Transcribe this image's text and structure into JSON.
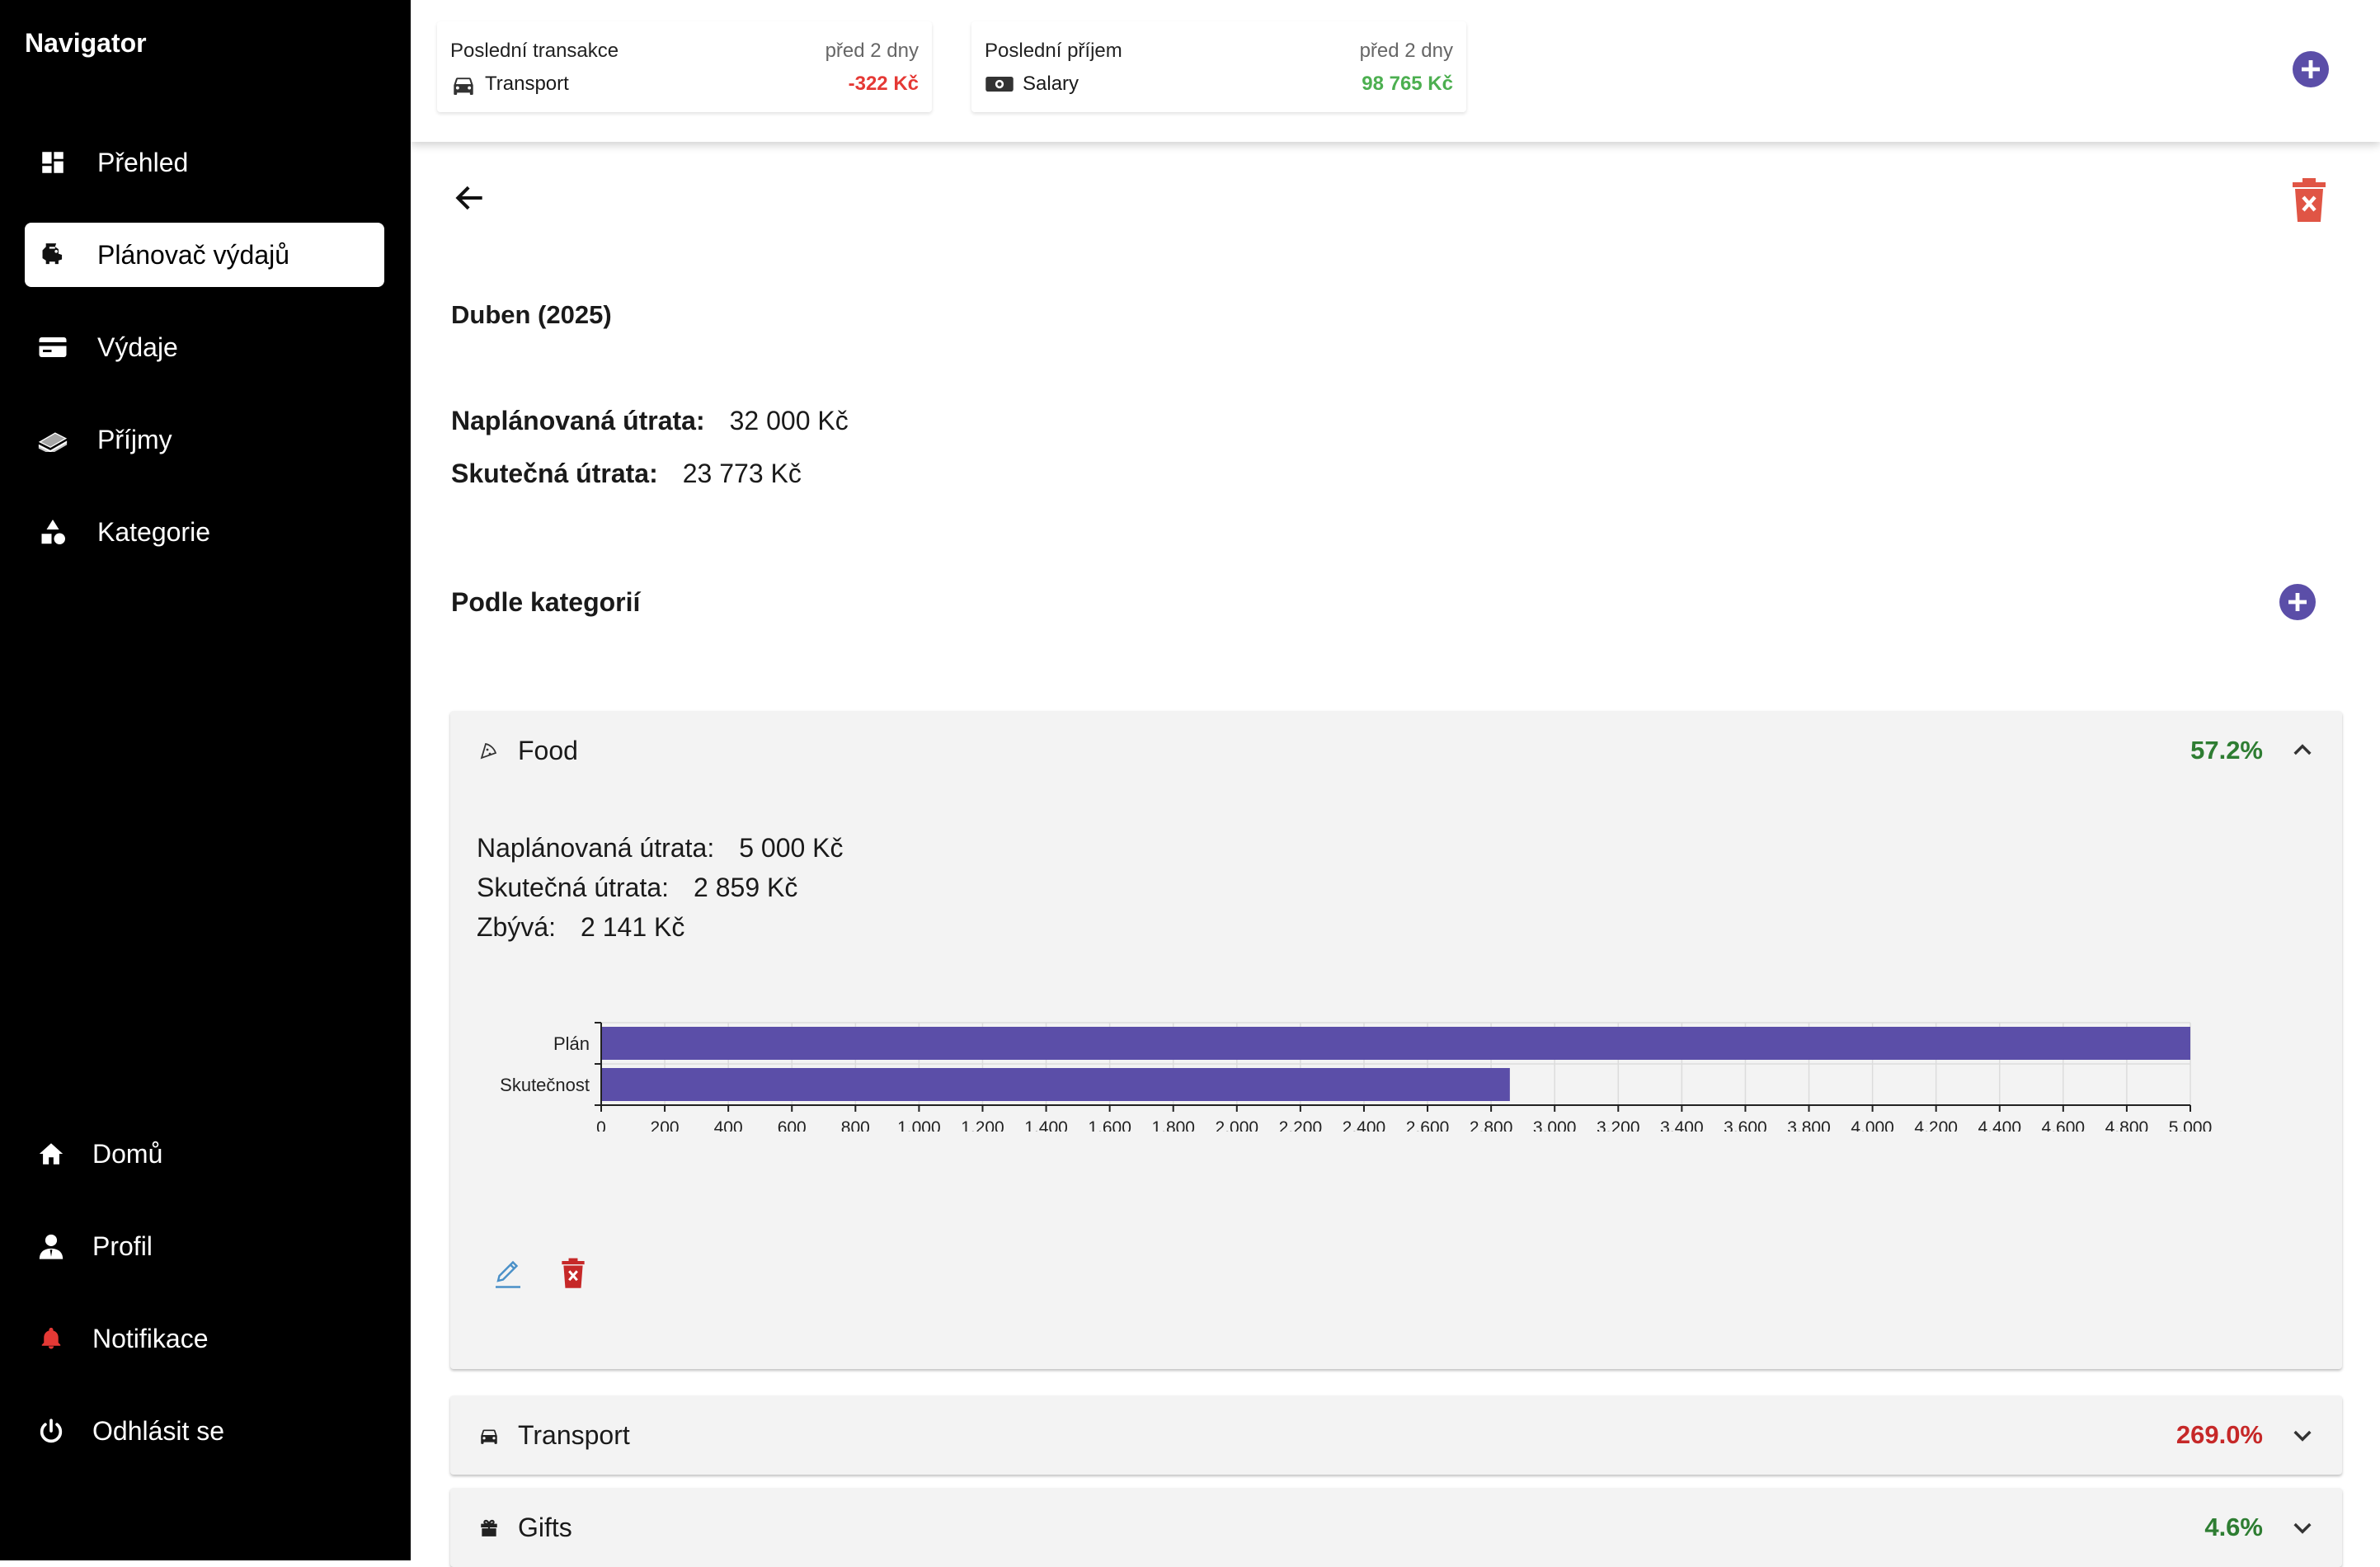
{
  "sidebar": {
    "brand": "Navigator",
    "items": [
      {
        "label": "Přehled",
        "icon": "dashboard-icon"
      },
      {
        "label": "Plánovač výdajů",
        "icon": "piggy-bank-icon"
      },
      {
        "label": "Výdaje",
        "icon": "credit-card-icon"
      },
      {
        "label": "Příjmy",
        "icon": "money-stack-icon"
      },
      {
        "label": "Kategorie",
        "icon": "category-shapes-icon"
      }
    ],
    "bottom": [
      {
        "label": "Domů",
        "icon": "home-icon"
      },
      {
        "label": "Profil",
        "icon": "profile-icon"
      },
      {
        "label": "Notifikace",
        "icon": "bell-icon"
      },
      {
        "label": "Odhlásit se",
        "icon": "power-icon"
      }
    ]
  },
  "topbar": {
    "last_transaction": {
      "title": "Poslední transakce",
      "time": "před 2 dny",
      "category": "Transport",
      "amount": "-322 Kč",
      "amount_color": "#e53935"
    },
    "last_income": {
      "title": "Poslední příjem",
      "time": "před 2 dny",
      "category": "Salary",
      "amount": "98 765 Kč",
      "amount_color": "#4caf50"
    }
  },
  "plan": {
    "title": "Duben (2025)",
    "planned_label": "Naplánovaná útrata:",
    "planned_value": "32 000 Kč",
    "actual_label": "Skutečná útrata:",
    "actual_value": "23 773 Kč",
    "section_title": "Podle kategorií"
  },
  "categories": [
    {
      "name": "Food",
      "icon": "pizza-icon",
      "percent": "57.2%",
      "percent_color": "#2e7d32",
      "expanded": true,
      "planned_label": "Naplánovaná útrata:",
      "planned_value": "5 000 Kč",
      "actual_label": "Skutečná útrata:",
      "actual_value": "2 859 Kč",
      "remaining_label": "Zbývá:",
      "remaining_value": "2 141 Kč"
    },
    {
      "name": "Transport",
      "icon": "car-icon",
      "percent": "269.0%",
      "percent_color": "#c62828",
      "expanded": false
    },
    {
      "name": "Gifts",
      "icon": "gift-icon",
      "percent": "4.6%",
      "percent_color": "#2e7d32",
      "expanded": false
    }
  ],
  "colors": {
    "accent": "#5b4ea8",
    "danger": "#e53935",
    "edit": "#4a90c8"
  },
  "chart_data": {
    "type": "bar",
    "orientation": "horizontal",
    "categories": [
      "Plán",
      "Skutečnost"
    ],
    "values": [
      5000,
      2859
    ],
    "xlim": [
      0,
      5000
    ],
    "xticks": [
      0,
      200,
      400,
      600,
      800,
      1000,
      1200,
      1400,
      1600,
      1800,
      2000,
      2200,
      2400,
      2600,
      2800,
      3000,
      3200,
      3400,
      3600,
      3800,
      4000,
      4200,
      4400,
      4600,
      4800,
      5000
    ],
    "xtick_labels": [
      "0",
      "200",
      "400",
      "600",
      "800",
      "1,000",
      "1,200",
      "1,400",
      "1,600",
      "1,800",
      "2,000",
      "2,200",
      "2,400",
      "2,600",
      "2,800",
      "3,000",
      "3,200",
      "3,400",
      "3,600",
      "3,800",
      "4,000",
      "4,200",
      "4,400",
      "4,600",
      "4,800",
      "5,000"
    ],
    "grid": true,
    "bar_color": "#5b4ea8",
    "title": "",
    "xlabel": "",
    "ylabel": ""
  }
}
